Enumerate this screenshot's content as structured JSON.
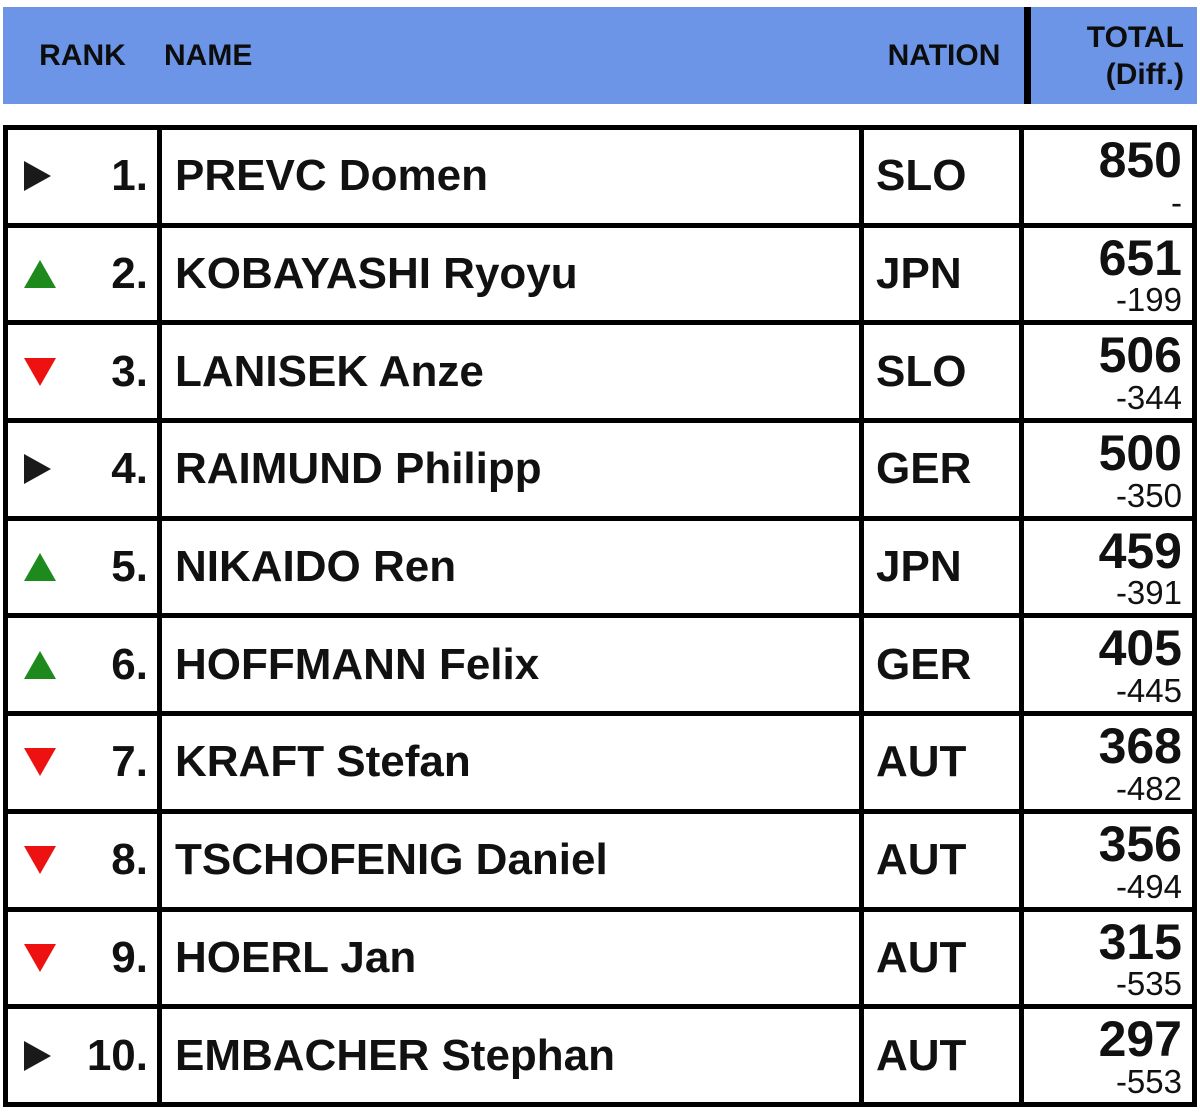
{
  "header": {
    "rank": "RANK",
    "name": "NAME",
    "nation": "NATION",
    "total_line1": "TOTAL",
    "total_line2": "(Diff.)"
  },
  "colors": {
    "header_bg": "#6c95e8",
    "border": "#000000",
    "trend_up": "#1e8a1e",
    "trend_down": "#ee1111",
    "trend_same": "#1a1a1a"
  },
  "rows": [
    {
      "trend": "same",
      "rank": "1.",
      "name": "PREVC Domen",
      "nation": "SLO",
      "total": "850",
      "diff": "-"
    },
    {
      "trend": "up",
      "rank": "2.",
      "name": "KOBAYASHI Ryoyu",
      "nation": "JPN",
      "total": "651",
      "diff": "-199"
    },
    {
      "trend": "down",
      "rank": "3.",
      "name": "LANISEK Anze",
      "nation": "SLO",
      "total": "506",
      "diff": "-344"
    },
    {
      "trend": "same",
      "rank": "4.",
      "name": "RAIMUND Philipp",
      "nation": "GER",
      "total": "500",
      "diff": "-350"
    },
    {
      "trend": "up",
      "rank": "5.",
      "name": "NIKAIDO Ren",
      "nation": "JPN",
      "total": "459",
      "diff": "-391"
    },
    {
      "trend": "up",
      "rank": "6.",
      "name": "HOFFMANN Felix",
      "nation": "GER",
      "total": "405",
      "diff": "-445"
    },
    {
      "trend": "down",
      "rank": "7.",
      "name": "KRAFT Stefan",
      "nation": "AUT",
      "total": "368",
      "diff": "-482"
    },
    {
      "trend": "down",
      "rank": "8.",
      "name": "TSCHOFENIG Daniel",
      "nation": "AUT",
      "total": "356",
      "diff": "-494"
    },
    {
      "trend": "down",
      "rank": "9.",
      "name": "HOERL Jan",
      "nation": "AUT",
      "total": "315",
      "diff": "-535"
    },
    {
      "trend": "same",
      "rank": "10.",
      "name": "EMBACHER Stephan",
      "nation": "AUT",
      "total": "297",
      "diff": "-553"
    }
  ]
}
